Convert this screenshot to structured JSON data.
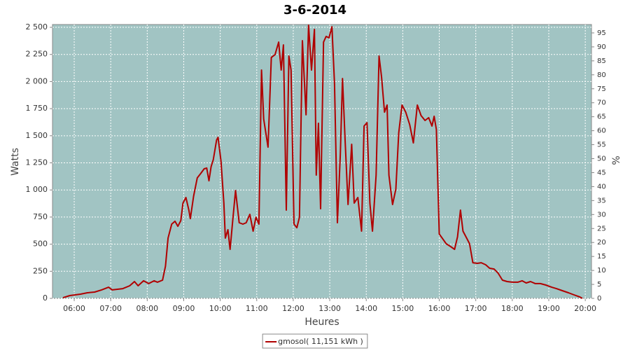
{
  "chart_data": {
    "type": "line",
    "title": "3-6-2014",
    "x_label": "Heures",
    "y_label": "Watts",
    "y2_label": "%",
    "legend": "bottom",
    "grid": true,
    "background": "#a1c4c3",
    "xlim": [
      5.405,
      20.17
    ],
    "ylim": [
      0,
      2526
    ],
    "y2lim": [
      0,
      98
    ],
    "xticks": [
      {
        "value": 6,
        "label": "06:00"
      },
      {
        "value": 7,
        "label": "07:00"
      },
      {
        "value": 8,
        "label": "08:00"
      },
      {
        "value": 9,
        "label": "09:00"
      },
      {
        "value": 10,
        "label": "10:00"
      },
      {
        "value": 11,
        "label": "11:00"
      },
      {
        "value": 12,
        "label": "12:00"
      },
      {
        "value": 13,
        "label": "13:00"
      },
      {
        "value": 14,
        "label": "14:00"
      },
      {
        "value": 15,
        "label": "15:00"
      },
      {
        "value": 16,
        "label": "16:00"
      },
      {
        "value": 17,
        "label": "17:00"
      },
      {
        "value": 18,
        "label": "18:00"
      },
      {
        "value": 19,
        "label": "19:00"
      },
      {
        "value": 20,
        "label": "20:00"
      }
    ],
    "yticks": [
      0,
      250,
      500,
      750,
      {
        "value": 1000,
        "label": "1 000"
      },
      {
        "value": 1250,
        "label": "1 250"
      },
      {
        "value": 1500,
        "label": "1 500"
      },
      {
        "value": 1750,
        "label": "1 750"
      },
      {
        "value": 2000,
        "label": "2 000"
      },
      {
        "value": 2250,
        "label": "2 250"
      },
      {
        "value": 2500,
        "label": "2 500"
      }
    ],
    "y2ticks": [
      0,
      5,
      10,
      15,
      20,
      25,
      30,
      35,
      40,
      45,
      50,
      55,
      60,
      65,
      70,
      75,
      80,
      85,
      90,
      95
    ],
    "x": [
      5.69,
      5.88,
      6.17,
      6.36,
      6.56,
      6.75,
      6.94,
      7.04,
      7.33,
      7.52,
      7.65,
      7.75,
      7.9,
      8.04,
      8.19,
      8.28,
      8.42,
      8.5,
      8.57,
      8.67,
      8.76,
      8.84,
      8.92,
      8.98,
      9.06,
      9.14,
      9.18,
      9.27,
      9.37,
      9.46,
      9.56,
      9.63,
      9.69,
      9.75,
      9.81,
      9.9,
      9.94,
      10.02,
      10.1,
      10.14,
      10.21,
      10.27,
      10.35,
      10.42,
      10.52,
      10.62,
      10.71,
      10.81,
      10.9,
      10.98,
      11.06,
      11.13,
      11.19,
      11.31,
      11.4,
      11.5,
      11.6,
      11.67,
      11.73,
      11.81,
      11.88,
      11.94,
      12.02,
      12.1,
      12.17,
      12.25,
      12.35,
      12.42,
      12.5,
      12.58,
      12.63,
      12.69,
      12.75,
      12.83,
      12.9,
      12.98,
      13.06,
      13.13,
      13.21,
      13.29,
      13.35,
      13.42,
      13.5,
      13.6,
      13.67,
      13.77,
      13.87,
      13.94,
      14.02,
      14.1,
      14.17,
      14.27,
      14.35,
      14.42,
      14.5,
      14.57,
      14.62,
      14.72,
      14.81,
      14.89,
      14.98,
      15.08,
      15.19,
      15.29,
      15.4,
      15.5,
      15.61,
      15.71,
      15.8,
      15.86,
      15.92,
      16.0,
      16.08,
      16.19,
      16.31,
      16.42,
      16.5,
      16.58,
      16.65,
      16.75,
      16.83,
      16.92,
      17.04,
      17.15,
      17.27,
      17.38,
      17.5,
      17.61,
      17.73,
      17.86,
      18.0,
      18.15,
      18.27,
      18.38,
      18.5,
      18.63,
      18.77,
      18.92,
      19.08,
      19.21,
      19.37,
      19.54,
      19.69,
      19.85,
      19.92
    ],
    "series": [
      {
        "name": "gmosol( 11,151 kWh )",
        "color": "#b00000",
        "values": [
          6,
          26,
          39,
          52,
          58,
          78,
          103,
          78,
          90,
          116,
          155,
          116,
          162,
          136,
          162,
          149,
          168,
          297,
          556,
          685,
          711,
          665,
          717,
          879,
          930,
          814,
          736,
          943,
          1111,
          1150,
          1195,
          1202,
          1085,
          1215,
          1279,
          1460,
          1486,
          1266,
          879,
          556,
          633,
          452,
          749,
          995,
          698,
          685,
          698,
          775,
          620,
          749,
          685,
          2106,
          1654,
          1395,
          2222,
          2248,
          2364,
          2106,
          2338,
          814,
          2235,
          2106,
          685,
          652,
          749,
          2377,
          1693,
          2519,
          2106,
          2481,
          1137,
          1615,
          827,
          2364,
          2416,
          2403,
          2506,
          1977,
          698,
          1331,
          2028,
          1460,
          866,
          1421,
          879,
          930,
          620,
          1589,
          1621,
          879,
          620,
          1137,
          2235,
          2041,
          1718,
          1783,
          1137,
          866,
          1008,
          1525,
          1783,
          1718,
          1602,
          1434,
          1783,
          1686,
          1641,
          1667,
          1589,
          1680,
          1557,
          594,
          556,
          504,
          478,
          452,
          568,
          814,
          620,
          556,
          504,
          329,
          323,
          329,
          310,
          278,
          271,
          233,
          168,
          155,
          149,
          149,
          162,
          142,
          155,
          136,
          136,
          123,
          103,
          90,
          71,
          52,
          32,
          13,
          0
        ]
      }
    ]
  }
}
